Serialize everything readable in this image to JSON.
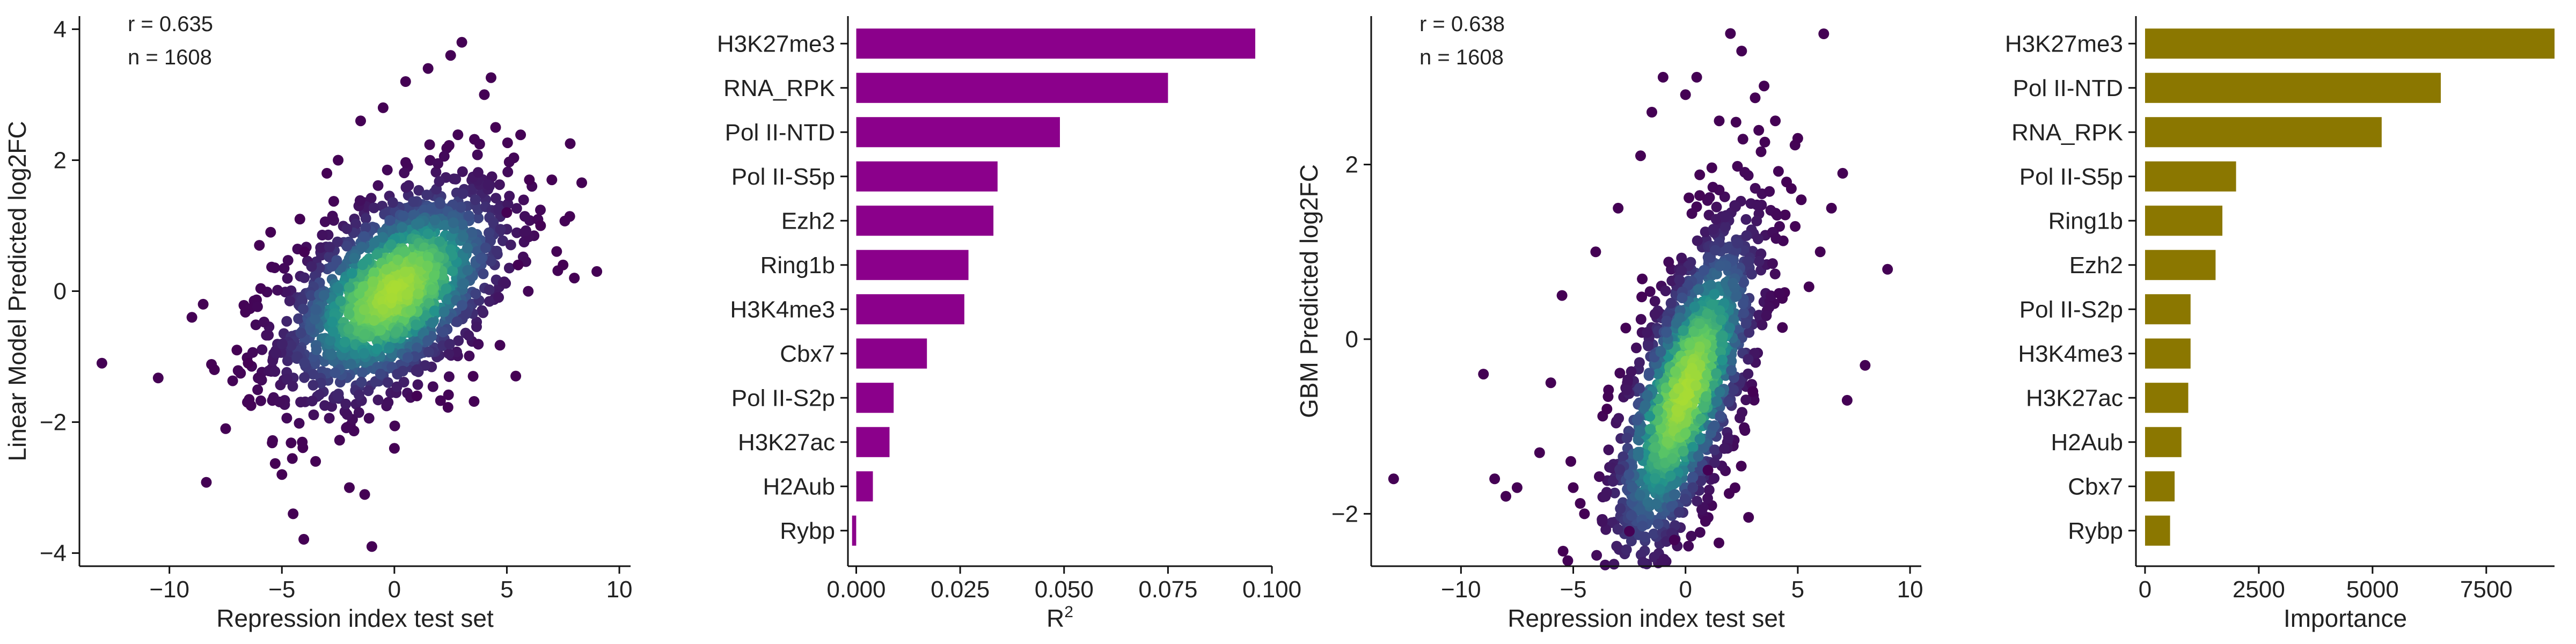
{
  "chart_data": [
    {
      "type": "scatter",
      "xlabel": "Repression index test set",
      "ylabel": "Linear Model Predicted log2FC",
      "xlim": [
        -14,
        10.5
      ],
      "ylim": [
        -4.2,
        4.2
      ],
      "xticks": [
        -10,
        -5,
        0,
        5,
        10
      ],
      "yticks": [
        -4,
        -2,
        0,
        2,
        4
      ],
      "annotations": [
        "r = 0.635",
        "n = 1608"
      ],
      "r": 0.635,
      "n": 1608,
      "color_scale": "viridis density",
      "colors": {
        "low": "#440154",
        "mid": "#21908c",
        "high": "#9fda3a"
      },
      "points": [
        [
          -13.0,
          -1.1
        ],
        [
          -9.0,
          -0.4
        ],
        [
          -8.5,
          -0.2
        ],
        [
          -8.0,
          -1.2
        ],
        [
          -7.5,
          -2.1
        ],
        [
          -7.0,
          -0.9
        ],
        [
          -6.5,
          -1.1
        ],
        [
          -6.0,
          0.7
        ],
        [
          -5.5,
          0.9
        ],
        [
          -5.0,
          -2.8
        ],
        [
          -4.5,
          -3.4
        ],
        [
          -4.2,
          1.1
        ],
        [
          -4.0,
          0.6
        ],
        [
          -3.5,
          -2.6
        ],
        [
          -3.0,
          1.8
        ],
        [
          -2.5,
          2.0
        ],
        [
          -2.0,
          -3.0
        ],
        [
          -1.5,
          2.6
        ],
        [
          -1.0,
          -3.9
        ],
        [
          -0.5,
          2.8
        ],
        [
          0.0,
          -2.4
        ],
        [
          0.5,
          3.2
        ],
        [
          1.0,
          -1.6
        ],
        [
          1.5,
          3.4
        ],
        [
          2.5,
          3.6
        ],
        [
          3.0,
          3.8
        ],
        [
          3.5,
          -1.3
        ],
        [
          4.0,
          3.0
        ],
        [
          4.5,
          2.5
        ],
        [
          5.0,
          1.2
        ],
        [
          5.5,
          0.4
        ],
        [
          6.0,
          1.7
        ],
        [
          6.5,
          1.0
        ],
        [
          7.0,
          1.7
        ],
        [
          7.5,
          0.4
        ],
        [
          8.0,
          0.2
        ],
        [
          9.0,
          0.3
        ]
      ]
    },
    {
      "type": "bar",
      "orientation": "horizontal",
      "categories": [
        "H3K27me3",
        "RNA_RPK",
        "Pol II-NTD",
        "Pol II-S5p",
        "Ezh2",
        "Ring1b",
        "H3K4me3",
        "Cbx7",
        "Pol II-S2p",
        "H3K27ac",
        "H2Aub",
        "Rybp"
      ],
      "values": [
        0.096,
        0.075,
        0.049,
        0.034,
        0.033,
        0.027,
        0.026,
        0.017,
        0.009,
        0.008,
        0.004,
        -0.001
      ],
      "xlabel": "R",
      "xlabel_sup": "2",
      "xlim": [
        -0.002,
        0.1
      ],
      "xticks": [
        0.0,
        0.025,
        0.05,
        0.075,
        0.1
      ],
      "xtick_labels": [
        "0.000",
        "0.025",
        "0.050",
        "0.075",
        "0.100"
      ],
      "color": "#8b008b"
    },
    {
      "type": "scatter",
      "xlabel": "Repression index test set",
      "ylabel": "GBM Predicted log2FC",
      "xlim": [
        -14,
        10.5
      ],
      "ylim": [
        -2.6,
        3.7
      ],
      "xticks": [
        -10,
        -5,
        0,
        5,
        10
      ],
      "yticks": [
        -2,
        0,
        2
      ],
      "annotations": [
        "r = 0.638",
        "n = 1608"
      ],
      "r": 0.638,
      "n": 1608,
      "color_scale": "viridis density",
      "colors": {
        "low": "#440154",
        "mid": "#21908c",
        "high": "#9fda3a"
      },
      "points": [
        [
          -13.0,
          -1.6
        ],
        [
          -9.0,
          -0.4
        ],
        [
          -8.5,
          -1.6
        ],
        [
          -8.0,
          -1.8
        ],
        [
          -7.5,
          -1.7
        ],
        [
          -6.5,
          -1.3
        ],
        [
          -6.0,
          -0.5
        ],
        [
          -5.5,
          0.5
        ],
        [
          -5.0,
          -1.7
        ],
        [
          -4.5,
          -2.0
        ],
        [
          -4.0,
          1.0
        ],
        [
          -3.5,
          -0.8
        ],
        [
          -3.0,
          1.5
        ],
        [
          -2.5,
          -2.2
        ],
        [
          -2.0,
          2.1
        ],
        [
          -1.5,
          2.6
        ],
        [
          -1.0,
          3.0
        ],
        [
          -0.5,
          -2.3
        ],
        [
          0.0,
          2.8
        ],
        [
          0.5,
          3.0
        ],
        [
          1.0,
          -1.5
        ],
        [
          1.5,
          2.5
        ],
        [
          2.0,
          3.5
        ],
        [
          2.5,
          3.3
        ],
        [
          3.0,
          -0.6
        ],
        [
          3.5,
          2.9
        ],
        [
          4.0,
          2.5
        ],
        [
          4.5,
          1.8
        ],
        [
          5.0,
          2.3
        ],
        [
          5.5,
          0.6
        ],
        [
          6.0,
          1.0
        ],
        [
          6.5,
          1.5
        ],
        [
          7.0,
          1.9
        ],
        [
          7.2,
          -0.7
        ],
        [
          8.0,
          -0.3
        ],
        [
          9.0,
          0.8
        ]
      ]
    },
    {
      "type": "bar",
      "orientation": "horizontal",
      "categories": [
        "H3K27me3",
        "Pol II-NTD",
        "RNA_RPK",
        "Pol II-S5p",
        "Ring1b",
        "Ezh2",
        "Pol II-S2p",
        "H3K4me3",
        "H3K27ac",
        "H2Aub",
        "Cbx7",
        "Rybp"
      ],
      "values": [
        9000,
        6500,
        5200,
        2000,
        1700,
        1550,
        1000,
        1000,
        950,
        800,
        650,
        550
      ],
      "xlabel": "Importance",
      "xlim": [
        -200,
        9000
      ],
      "xticks": [
        0,
        2500,
        5000,
        7500
      ],
      "xtick_labels": [
        "0",
        "2500",
        "5000",
        "7500"
      ],
      "color": "#8b7700"
    }
  ]
}
